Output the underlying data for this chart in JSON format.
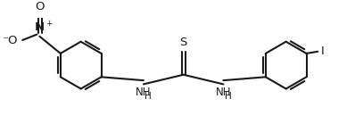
{
  "bg_color": "#ffffff",
  "line_color": "#1a1a1a",
  "line_width": 1.5,
  "font_size": 8.5,
  "figsize": [
    3.98,
    1.48
  ],
  "dpi": 100,
  "xlim": [
    -4.5,
    4.5
  ],
  "ylim": [
    -1.35,
    1.35
  ]
}
